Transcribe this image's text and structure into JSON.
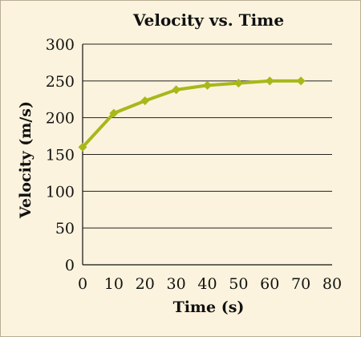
{
  "chart_data": {
    "type": "line",
    "title": "Velocity vs. Time",
    "xlabel": "Time (s)",
    "ylabel": "Velocity (m/s)",
    "xlim": [
      0,
      80
    ],
    "ylim": [
      0,
      300
    ],
    "xticks": [
      0,
      10,
      20,
      30,
      40,
      50,
      60,
      70,
      80
    ],
    "yticks": [
      0,
      50,
      100,
      150,
      200,
      250,
      300
    ],
    "grid": "horizontal",
    "legend": "none",
    "series": [
      {
        "x": [
          0,
          10,
          20,
          30,
          40,
          50,
          60,
          70
        ],
        "y": [
          160,
          206,
          223,
          238,
          244,
          247,
          250,
          250
        ],
        "color": "#a7b81a",
        "marker": "diamond"
      }
    ]
  }
}
